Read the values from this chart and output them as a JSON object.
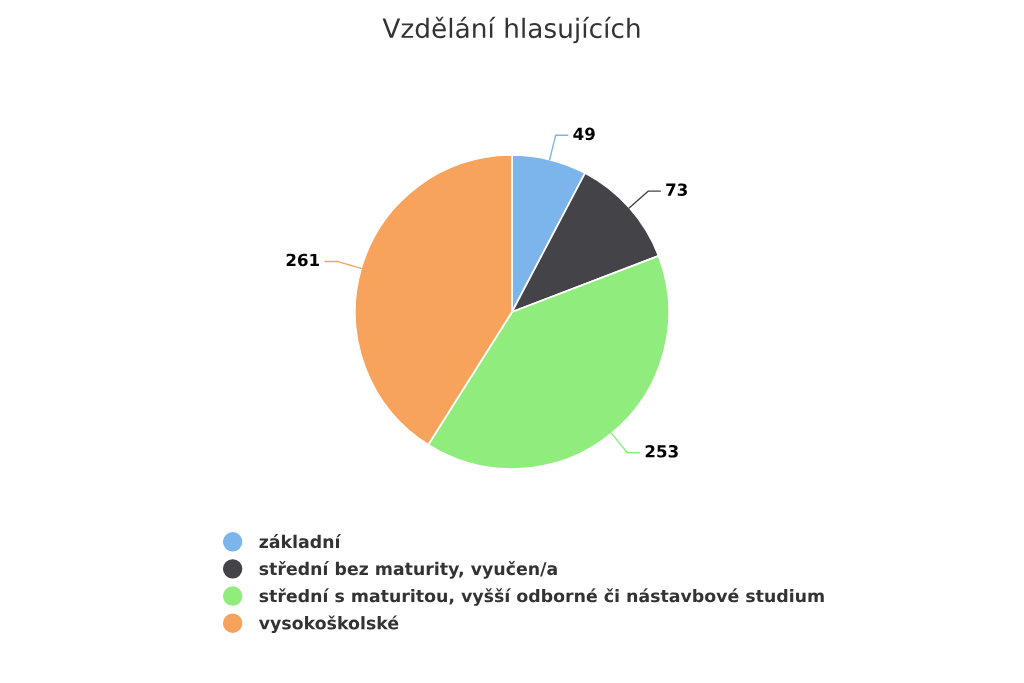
{
  "chart_data": {
    "type": "pie",
    "title": "Vzdělání hlasujících",
    "categories": [
      "základní",
      "střední bez maturity, vyučen/a",
      "střední s maturitou, vyšší odborné či nástavbové studium",
      "vysokoškolské"
    ],
    "values": [
      49,
      73,
      253,
      261
    ],
    "colors": [
      "#7cb5ec",
      "#434348",
      "#90ed7d",
      "#f7a35c"
    ],
    "data_labels": true,
    "legend": "bottom"
  }
}
